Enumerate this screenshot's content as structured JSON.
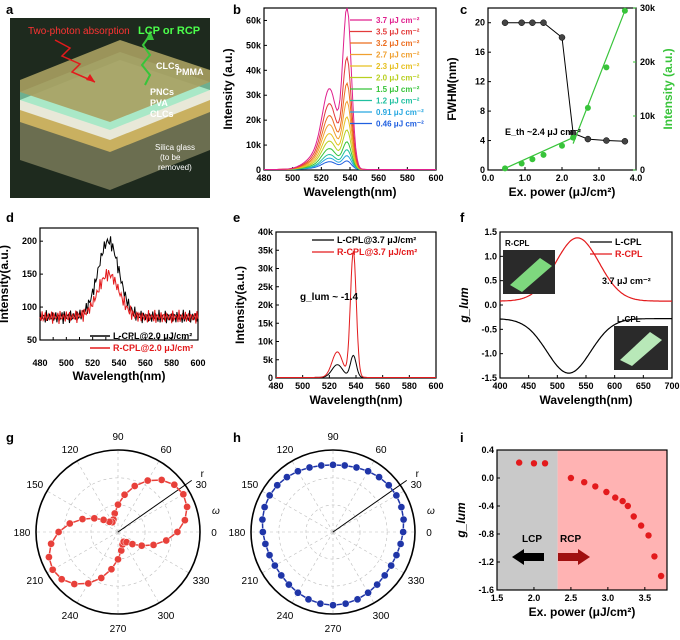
{
  "colors": {
    "red": "#e31a1c",
    "black": "#000000",
    "blue": "#1f35a8",
    "green": "#38c43a",
    "magenta": "#e0208e",
    "gray_panel": "#c9c9c9",
    "pink_panel": "#ffb3b3"
  },
  "panel_labels": [
    "a",
    "b",
    "c",
    "d",
    "e",
    "f",
    "g",
    "h",
    "i"
  ],
  "panel_a": {
    "texts": [
      "Two-photon absorption",
      "LCP or RCP",
      "CLCs",
      "PMMA",
      "PNCs",
      "PVA",
      "CLCs",
      "Silica glass",
      "(to be",
      "removed)"
    ]
  },
  "chart_data": [
    {
      "panel": "b",
      "type": "line",
      "xlabel": "Wavelength(nm)",
      "ylabel": "Intensity (a.u.)",
      "xlim": [
        480,
        600
      ],
      "ylim": [
        0,
        65000
      ],
      "xticks": [
        480,
        500,
        520,
        540,
        560,
        580,
        600
      ],
      "yticks": [
        0,
        10000,
        20000,
        30000,
        40000,
        50000,
        60000
      ],
      "ytick_labels": [
        "0",
        "10k",
        "20k",
        "30k",
        "40k",
        "50k",
        "60k"
      ],
      "legend_position": "top-right",
      "series": [
        {
          "name": "3.7 μJ cm⁻²",
          "color": "#e0208e",
          "peak": 63000,
          "side": 27000
        },
        {
          "name": "3.5 μJ cm⁻²",
          "color": "#e33b3b",
          "peak": 43000,
          "side": 22000
        },
        {
          "name": "3.2 μJ cm⁻²",
          "color": "#ec6d1f",
          "peak": 33000,
          "side": 18000
        },
        {
          "name": "2.7 μJ cm⁻²",
          "color": "#f0a030",
          "peak": 26000,
          "side": 15000
        },
        {
          "name": "2.3 μJ cm⁻²",
          "color": "#e6c020",
          "peak": 20000,
          "side": 12000
        },
        {
          "name": "2.0 μJ cm⁻²",
          "color": "#b8d020",
          "peak": 15000,
          "side": 9500
        },
        {
          "name": "1.5 μJ cm⁻²",
          "color": "#38c43a",
          "peak": 10500,
          "side": 7000
        },
        {
          "name": "1.2 μJ cm⁻²",
          "color": "#20c0a0",
          "peak": 7500,
          "side": 5000
        },
        {
          "name": "0.91 μJ cm⁻²",
          "color": "#28a8e0",
          "peak": 5200,
          "side": 3800
        },
        {
          "name": "0.46 μJ cm⁻²",
          "color": "#2060e0",
          "peak": 3200,
          "side": 2600
        }
      ]
    },
    {
      "panel": "c",
      "type": "scatter",
      "xlabel": "Ex. power (μJ/cm²)",
      "ylabel_left": "FWHM(nm)",
      "ylabel_right": "Intensity (a.u.)",
      "xlim": [
        0,
        4
      ],
      "ylim_left": [
        0,
        22
      ],
      "ylim_right": [
        0,
        30000
      ],
      "xticks": [
        0.0,
        1.0,
        2.0,
        3.0,
        4.0
      ],
      "yticks_left": [
        0,
        4,
        8,
        12,
        16,
        20
      ],
      "yticks_right": [
        0,
        10000,
        20000,
        30000
      ],
      "ytick_labels_right": [
        "0",
        "10k",
        "20k",
        "30k"
      ],
      "annotation": "E_th ~2.4 μJ cm⁻²",
      "fwhm": {
        "x": [
          0.46,
          0.91,
          1.2,
          1.5,
          2.0,
          2.3,
          2.7,
          3.2,
          3.7
        ],
        "y": [
          20,
          20,
          20,
          20,
          18,
          5,
          4.2,
          4.0,
          3.9
        ]
      },
      "intensity": {
        "x": [
          0.46,
          0.91,
          1.2,
          1.5,
          2.0,
          2.3,
          2.7,
          3.2,
          3.7
        ],
        "y": [
          300,
          1200,
          2000,
          2800,
          4500,
          6000,
          11500,
          19000,
          29500
        ]
      }
    },
    {
      "panel": "d",
      "type": "line",
      "xlabel": "Wavelength(nm)",
      "ylabel": "Intensity(a.u.)",
      "xlim": [
        480,
        600
      ],
      "ylim": [
        50,
        220
      ],
      "xticks": [
        480,
        490,
        500,
        510,
        520,
        530,
        540,
        550,
        560,
        570,
        580,
        590,
        600
      ],
      "yticks": [
        50,
        100,
        150,
        200
      ],
      "legend_position": "bottom-right",
      "series": [
        {
          "name": "L-CPL@2.0 μJ/cm²",
          "color": "#000000",
          "peak": 200
        },
        {
          "name": "R-CPL@2.0 μJ/cm²",
          "color": "#e31a1c",
          "peak": 150
        }
      ]
    },
    {
      "panel": "e",
      "type": "line",
      "xlabel": "Wavelength(nm)",
      "ylabel": "Intensity(a.u.)",
      "xlim": [
        480,
        600
      ],
      "ylim": [
        0,
        40000
      ],
      "xticks": [
        480,
        500,
        520,
        540,
        560,
        580,
        600
      ],
      "yticks": [
        0,
        5000,
        10000,
        15000,
        20000,
        25000,
        30000,
        35000,
        40000
      ],
      "ytick_labels": [
        "0",
        "5k",
        "10k",
        "15k",
        "20k",
        "25k",
        "30k",
        "35k",
        "40k"
      ],
      "annotation": "g_lum ~ -1.4",
      "legend_position": "top-right",
      "series": [
        {
          "name": "L-CPL@3.7 μJ/cm²",
          "color": "#000000",
          "peak": 6000,
          "side": 3500
        },
        {
          "name": "R-CPL@3.7 μJ/cm²",
          "color": "#e31a1c",
          "peak": 34500,
          "side": 7000
        }
      ]
    },
    {
      "panel": "f",
      "type": "line",
      "xlabel": "Wavelength(nm)",
      "ylabel": "g_lum",
      "xlim": [
        400,
        700
      ],
      "ylim": [
        -1.5,
        1.5
      ],
      "xticks": [
        400,
        450,
        500,
        550,
        600,
        650,
        700
      ],
      "yticks": [
        -1.5,
        -1.0,
        -0.5,
        0.0,
        0.5,
        1.0,
        1.5
      ],
      "annotation": "3.7 μJ cm⁻²",
      "legend_position": "top-right",
      "inset_labels": [
        "R-CPL",
        "L-CPL"
      ],
      "series": [
        {
          "name": "L-CPL",
          "color": "#000000",
          "peak_value": -1.4,
          "base": -0.28
        },
        {
          "name": "R-CPL",
          "color": "#e31a1c",
          "peak_value": 1.38,
          "base": 0.08
        }
      ]
    },
    {
      "panel": "g",
      "type": "scatter",
      "polar": true,
      "angle_labels": [
        "0",
        "30",
        "60",
        "90",
        "120",
        "150",
        "180",
        "210",
        "240",
        "270",
        "300",
        "330"
      ],
      "axis_labels": [
        "r",
        "ω"
      ],
      "color": "#e8403a",
      "description_pattern": "two-lobed (figure-8) pattern along 30°/210°"
    },
    {
      "panel": "h",
      "type": "scatter",
      "polar": true,
      "angle_labels": [
        "0",
        "30",
        "60",
        "90",
        "120",
        "150",
        "180",
        "210",
        "240",
        "270",
        "300",
        "330"
      ],
      "axis_labels": [
        "r",
        "ω"
      ],
      "color": "#1f35a8",
      "description_pattern": "near-circular pattern"
    },
    {
      "panel": "i",
      "type": "scatter",
      "xlabel": "Ex. power (μJ/cm²)",
      "ylabel": "g_lum",
      "xlim": [
        1.5,
        3.8
      ],
      "ylim": [
        -1.6,
        0.4
      ],
      "xticks": [
        1.5,
        2.0,
        2.5,
        3.0,
        3.5
      ],
      "yticks": [
        -1.6,
        -1.2,
        -0.8,
        -0.4,
        0.0,
        0.4
      ],
      "region_labels": [
        "LCP",
        "RCP"
      ],
      "x": [
        1.8,
        2.0,
        2.15,
        2.5,
        2.68,
        2.83,
        2.98,
        3.1,
        3.2,
        3.27,
        3.35,
        3.45,
        3.55,
        3.63,
        3.72
      ],
      "y": [
        0.22,
        0.21,
        0.21,
        0.0,
        -0.06,
        -0.12,
        -0.2,
        -0.28,
        -0.33,
        -0.4,
        -0.55,
        -0.68,
        -0.82,
        -1.12,
        -1.4
      ]
    }
  ]
}
